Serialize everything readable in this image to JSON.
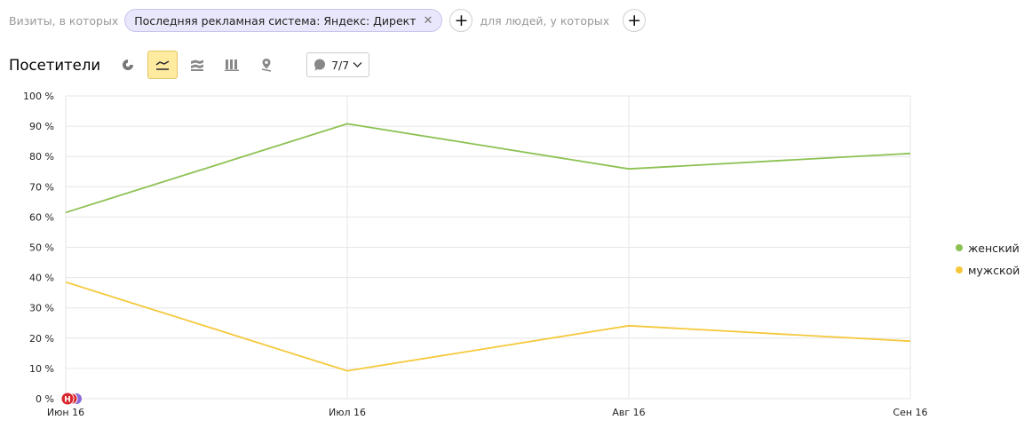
{
  "filters": {
    "visits_label": "Визиты, в которых",
    "chip_label": "Последняя рекламная система: Яндекс: Директ",
    "people_label": "для людей, у которых"
  },
  "toolbar": {
    "title": "Посетители",
    "annotations_label": "7/7",
    "icons": [
      "pie-chart-icon",
      "line-chart-icon",
      "area-chart-icon",
      "bar-chart-icon",
      "map-icon"
    ],
    "active_view": "line"
  },
  "colors": {
    "female": "#8cc152",
    "male": "#f5c83b",
    "accent": "#ffeba0"
  },
  "markers": [
    "Н"
  ],
  "chart_data": {
    "type": "line",
    "x": [
      "Июн 16",
      "Июл 16",
      "Авг 16",
      "Сен 16"
    ],
    "y_ticks": [
      "0 %",
      "10 %",
      "20 %",
      "30 %",
      "40 %",
      "50 %",
      "60 %",
      "70 %",
      "80 %",
      "90 %",
      "100 %"
    ],
    "ylim": [
      0,
      100
    ],
    "grid": true,
    "legend_position": "right",
    "series": [
      {
        "name": "женский",
        "color": "#8cc152",
        "values": [
          61.5,
          90.8,
          75.9,
          81.0
        ]
      },
      {
        "name": "мужской",
        "color": "#f5c83b",
        "values": [
          38.5,
          9.2,
          24.1,
          19.0
        ]
      }
    ]
  }
}
